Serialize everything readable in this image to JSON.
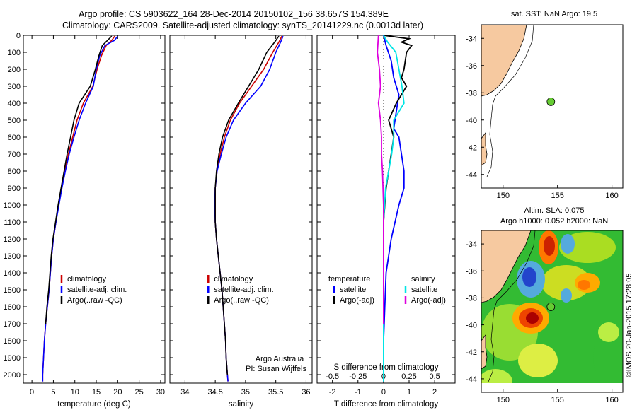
{
  "title_line1": "Argo profile: CS 5903622_164 28-Dec-2014 20150102_156 38.657S 154.389E",
  "title_line2": "Climatology: CARS2009. Satellite-adjusted climatology: synTS_20141229.nc (0.0013d later)",
  "credit": "Argo Australia",
  "pi": "PI: Susan Wijffels",
  "stamp": "©IMOS 20-Jan-2015 17:28:05",
  "colors": {
    "clim": "#cc0000",
    "sat": "#0000ff",
    "argo": "#000000",
    "sat_s": "#00e5e5",
    "argo_s": "#dd00dd",
    "land": "#f6c9a0"
  },
  "chart_data": [
    {
      "type": "line",
      "xlabel": "temperature (deg C)",
      "ylim": [
        2050,
        0
      ],
      "y_ticks": [
        0,
        100,
        200,
        300,
        400,
        500,
        600,
        700,
        800,
        900,
        1000,
        1100,
        1200,
        1300,
        1400,
        1500,
        1600,
        1700,
        1800,
        1900,
        2000
      ],
      "xlim": [
        -2,
        31
      ],
      "x_ticks": [
        0,
        5,
        10,
        15,
        20,
        25,
        30
      ],
      "legend": [
        "climatology",
        "satellite-adj. clim.",
        "Argo(..raw -QC)"
      ],
      "series": [
        {
          "name": "climatology",
          "color_key": "clim",
          "points": [
            [
              19.3,
              5
            ],
            [
              18.6,
              30
            ],
            [
              17.3,
              60
            ],
            [
              16.2,
              120
            ],
            [
              15.2,
              200
            ],
            [
              14.2,
              300
            ],
            [
              12.0,
              400
            ],
            [
              10.5,
              500
            ],
            [
              9.5,
              600
            ],
            [
              8.5,
              700
            ],
            [
              7.7,
              800
            ],
            [
              6.9,
              900
            ],
            [
              6.2,
              1000
            ],
            [
              5.6,
              1100
            ],
            [
              5.0,
              1200
            ],
            [
              4.6,
              1300
            ],
            [
              4.3,
              1400
            ],
            [
              4.0,
              1500
            ],
            [
              3.6,
              1600
            ],
            [
              3.2,
              1700
            ],
            [
              2.9,
              1800
            ],
            [
              2.7,
              1900
            ],
            [
              2.5,
              2000
            ],
            [
              2.5,
              2040
            ]
          ]
        },
        {
          "name": "satellite-adj. clim.",
          "color_key": "sat",
          "points": [
            [
              20.0,
              5
            ],
            [
              19.2,
              30
            ],
            [
              17.0,
              60
            ],
            [
              15.8,
              120
            ],
            [
              15.0,
              200
            ],
            [
              14.3,
              300
            ],
            [
              12.5,
              400
            ],
            [
              11.0,
              500
            ],
            [
              9.8,
              600
            ],
            [
              8.7,
              700
            ],
            [
              7.8,
              800
            ],
            [
              7.0,
              900
            ],
            [
              6.3,
              1000
            ],
            [
              5.6,
              1100
            ],
            [
              5.0,
              1200
            ],
            [
              4.6,
              1300
            ],
            [
              4.3,
              1400
            ],
            [
              4.0,
              1500
            ],
            [
              3.6,
              1600
            ],
            [
              3.2,
              1700
            ],
            [
              2.9,
              1800
            ],
            [
              2.7,
              1900
            ],
            [
              2.5,
              2000
            ],
            [
              2.5,
              2040
            ]
          ]
        },
        {
          "name": "Argo(..raw -QC)",
          "color_key": "argo",
          "points": [
            [
              18.6,
              5
            ],
            [
              17.6,
              30
            ],
            [
              16.4,
              60
            ],
            [
              15.6,
              120
            ],
            [
              14.8,
              200
            ],
            [
              13.6,
              300
            ],
            [
              11.0,
              400
            ],
            [
              9.8,
              500
            ],
            [
              9.0,
              600
            ],
            [
              8.2,
              700
            ],
            [
              7.5,
              800
            ],
            [
              6.8,
              900
            ],
            [
              6.1,
              1000
            ],
            [
              5.5,
              1100
            ],
            [
              4.9,
              1200
            ],
            [
              4.5,
              1300
            ],
            [
              4.2,
              1400
            ],
            [
              3.9,
              1500
            ],
            [
              3.5,
              1600
            ],
            [
              3.2,
              1700
            ]
          ]
        }
      ]
    },
    {
      "type": "line",
      "xlabel": "salinity",
      "ylim": [
        2050,
        0
      ],
      "xlim": [
        33.75,
        36.1
      ],
      "x_ticks": [
        34,
        34.5,
        35,
        35.5,
        36
      ],
      "legend": [
        "climatology",
        "satellite-adj. clim.",
        "Argo(..raw -QC)"
      ],
      "series": [
        {
          "name": "climatology",
          "color_key": "clim",
          "points": [
            [
              35.6,
              5
            ],
            [
              35.55,
              40
            ],
            [
              35.45,
              100
            ],
            [
              35.3,
              200
            ],
            [
              35.1,
              300
            ],
            [
              34.9,
              400
            ],
            [
              34.75,
              500
            ],
            [
              34.65,
              600
            ],
            [
              34.58,
              700
            ],
            [
              34.53,
              800
            ],
            [
              34.5,
              900
            ],
            [
              34.5,
              1000
            ],
            [
              34.5,
              1100
            ],
            [
              34.52,
              1200
            ],
            [
              34.55,
              1300
            ],
            [
              34.58,
              1400
            ],
            [
              34.61,
              1500
            ],
            [
              34.63,
              1600
            ],
            [
              34.65,
              1700
            ],
            [
              34.67,
              1800
            ],
            [
              34.68,
              1900
            ],
            [
              34.7,
              2000
            ],
            [
              34.71,
              2040
            ]
          ]
        },
        {
          "name": "satellite-adj. clim.",
          "color_key": "sat",
          "points": [
            [
              35.62,
              5
            ],
            [
              35.58,
              40
            ],
            [
              35.5,
              100
            ],
            [
              35.4,
              200
            ],
            [
              35.25,
              300
            ],
            [
              35.0,
              400
            ],
            [
              34.8,
              500
            ],
            [
              34.68,
              600
            ],
            [
              34.6,
              700
            ],
            [
              34.53,
              800
            ],
            [
              34.5,
              900
            ],
            [
              34.49,
              1000
            ],
            [
              34.5,
              1100
            ],
            [
              34.52,
              1200
            ],
            [
              34.55,
              1300
            ],
            [
              34.58,
              1400
            ],
            [
              34.61,
              1500
            ],
            [
              34.63,
              1600
            ],
            [
              34.65,
              1700
            ],
            [
              34.67,
              1800
            ],
            [
              34.68,
              1900
            ],
            [
              34.7,
              2000
            ],
            [
              34.71,
              2040
            ]
          ]
        },
        {
          "name": "Argo(..raw -QC)",
          "color_key": "argo",
          "points": [
            [
              35.55,
              5
            ],
            [
              35.48,
              40
            ],
            [
              35.35,
              100
            ],
            [
              35.22,
              200
            ],
            [
              35.05,
              300
            ],
            [
              34.88,
              400
            ],
            [
              34.72,
              500
            ],
            [
              34.62,
              600
            ],
            [
              34.56,
              700
            ],
            [
              34.52,
              800
            ],
            [
              34.5,
              900
            ],
            [
              34.5,
              1000
            ],
            [
              34.5,
              1100
            ],
            [
              34.52,
              1200
            ],
            [
              34.55,
              1300
            ],
            [
              34.58,
              1400
            ],
            [
              34.61,
              1500
            ],
            [
              34.63,
              1600
            ],
            [
              34.65,
              1700
            ],
            [
              34.67,
              1800
            ],
            [
              34.68,
              1900
            ],
            [
              34.7,
              2000
            ]
          ]
        }
      ]
    },
    {
      "type": "line",
      "xlabel": "T difference from climatology",
      "x2label": "S difference from climatology",
      "ylim": [
        2050,
        0
      ],
      "xlim": [
        -2.6,
        2.8
      ],
      "x_ticks": [
        -2,
        -1,
        0,
        1,
        2
      ],
      "x2lim": [
        -0.65,
        0.7
      ],
      "x2_ticks": [
        -0.5,
        -0.25,
        0,
        0.25,
        0.5
      ],
      "x2_tick_labels": [
        "-0.5",
        "-0.25",
        "0",
        "0.25",
        "0.5"
      ],
      "legend_titles": [
        "temperature",
        "salinity"
      ],
      "legend": [
        "satellite",
        "Argo(-adj)",
        "satellite",
        "Argo(-adj)"
      ],
      "series": [
        {
          "name": "satellite",
          "group": "temperature",
          "color_key": "sat",
          "axis": "T",
          "points": [
            [
              0.0,
              0
            ],
            [
              0.1,
              60
            ],
            [
              0.3,
              150
            ],
            [
              0.4,
              250
            ],
            [
              0.6,
              350
            ],
            [
              0.5,
              450
            ],
            [
              0.4,
              550
            ],
            [
              0.6,
              600
            ],
            [
              0.7,
              700
            ],
            [
              0.8,
              800
            ],
            [
              0.8,
              900
            ],
            [
              0.6,
              1000
            ],
            [
              0.3,
              1200
            ],
            [
              0.1,
              1400
            ],
            [
              0.05,
              1600
            ],
            [
              0.0,
              1800
            ],
            [
              0.0,
              2040
            ]
          ]
        },
        {
          "name": "Argo(-adj)",
          "group": "temperature",
          "color_key": "argo",
          "axis": "T",
          "points": [
            [
              0.0,
              0
            ],
            [
              1.0,
              20
            ],
            [
              0.7,
              40
            ],
            [
              1.1,
              60
            ],
            [
              0.9,
              100
            ],
            [
              0.8,
              200
            ],
            [
              0.7,
              250
            ],
            [
              0.9,
              300
            ],
            [
              0.5,
              400
            ],
            [
              0.2,
              500
            ],
            [
              0.4,
              600
            ],
            [
              0.3,
              700
            ],
            [
              0.2,
              800
            ],
            [
              0.1,
              900
            ],
            [
              0.0,
              1100
            ],
            [
              0.0,
              1300
            ],
            [
              0.0,
              1700
            ]
          ]
        },
        {
          "name": "satellite",
          "group": "salinity",
          "color_key": "sat_s",
          "axis": "S",
          "points": [
            [
              0.0,
              0
            ],
            [
              0.04,
              40
            ],
            [
              0.12,
              100
            ],
            [
              0.15,
              200
            ],
            [
              0.18,
              300
            ],
            [
              0.2,
              400
            ],
            [
              0.1,
              500
            ],
            [
              0.1,
              600
            ],
            [
              0.08,
              700
            ],
            [
              0.05,
              800
            ],
            [
              0.02,
              900
            ],
            [
              0.0,
              1100
            ],
            [
              0.0,
              1500
            ],
            [
              0.0,
              2040
            ]
          ]
        },
        {
          "name": "Argo(-adj)",
          "group": "salinity",
          "color_key": "argo_s",
          "axis": "S",
          "points": [
            [
              -0.05,
              0
            ],
            [
              -0.06,
              100
            ],
            [
              -0.04,
              200
            ],
            [
              -0.03,
              300
            ],
            [
              -0.05,
              400
            ],
            [
              -0.03,
              500
            ],
            [
              -0.02,
              600
            ],
            [
              -0.02,
              700
            ],
            [
              -0.01,
              800
            ],
            [
              0.0,
              1000
            ],
            [
              0.0,
              1400
            ],
            [
              0.0,
              1700
            ]
          ]
        }
      ]
    },
    {
      "type": "map",
      "title": "sat. SST: NaN  Argo: 19.5",
      "xlim": [
        148,
        161
      ],
      "ylim": [
        -45,
        -33
      ],
      "x_ticks": [
        150,
        155,
        160
      ],
      "y_ticks": [
        -34,
        -36,
        -38,
        -40,
        -42,
        -44
      ],
      "y_tick_labels": [
        "-34",
        "-36",
        "-38",
        "-40",
        "-42",
        "-44"
      ],
      "marker": {
        "lon": 154.389,
        "lat": -38.657
      }
    },
    {
      "type": "heatmap",
      "title_line1": "Altim. SLA: 0.075",
      "title_line2": "Argo h1000: 0.052  h2000: NaN",
      "xlim": [
        148,
        161
      ],
      "ylim": [
        -45,
        -33
      ],
      "x_ticks": [
        150,
        155,
        160
      ],
      "y_ticks": [
        -34,
        -36,
        -38,
        -40,
        -42,
        -44
      ],
      "y_tick_labels": [
        "-34",
        "-36",
        "-38",
        "-40",
        "-42",
        "-44"
      ],
      "marker": {
        "lon": 154.389,
        "lat": -38.657
      }
    }
  ]
}
